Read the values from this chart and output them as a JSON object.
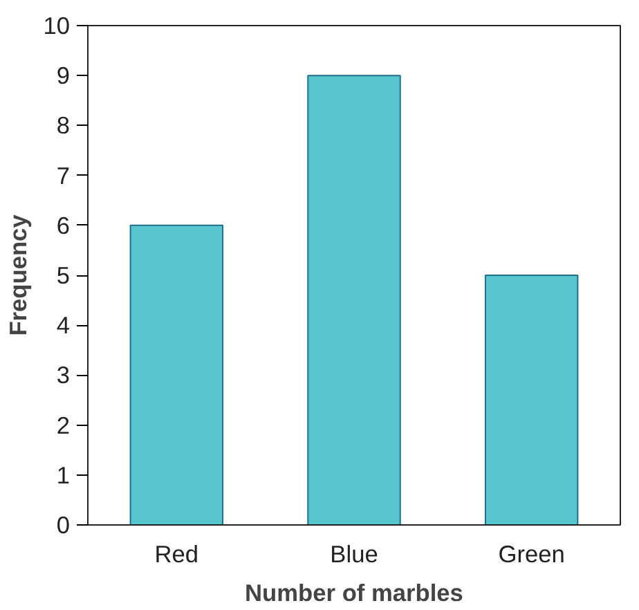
{
  "chart_data": {
    "type": "bar",
    "xlabel": "Number of marbles",
    "ylabel": "Frequency",
    "categories": [
      "Red",
      "Blue",
      "Green"
    ],
    "values": [
      6,
      9,
      5
    ],
    "color": "#56c5d0",
    "ylim": [
      0,
      10
    ],
    "yticks": [
      0,
      1,
      2,
      3,
      4,
      5,
      6,
      7,
      8,
      9,
      10
    ],
    "grid": false
  }
}
